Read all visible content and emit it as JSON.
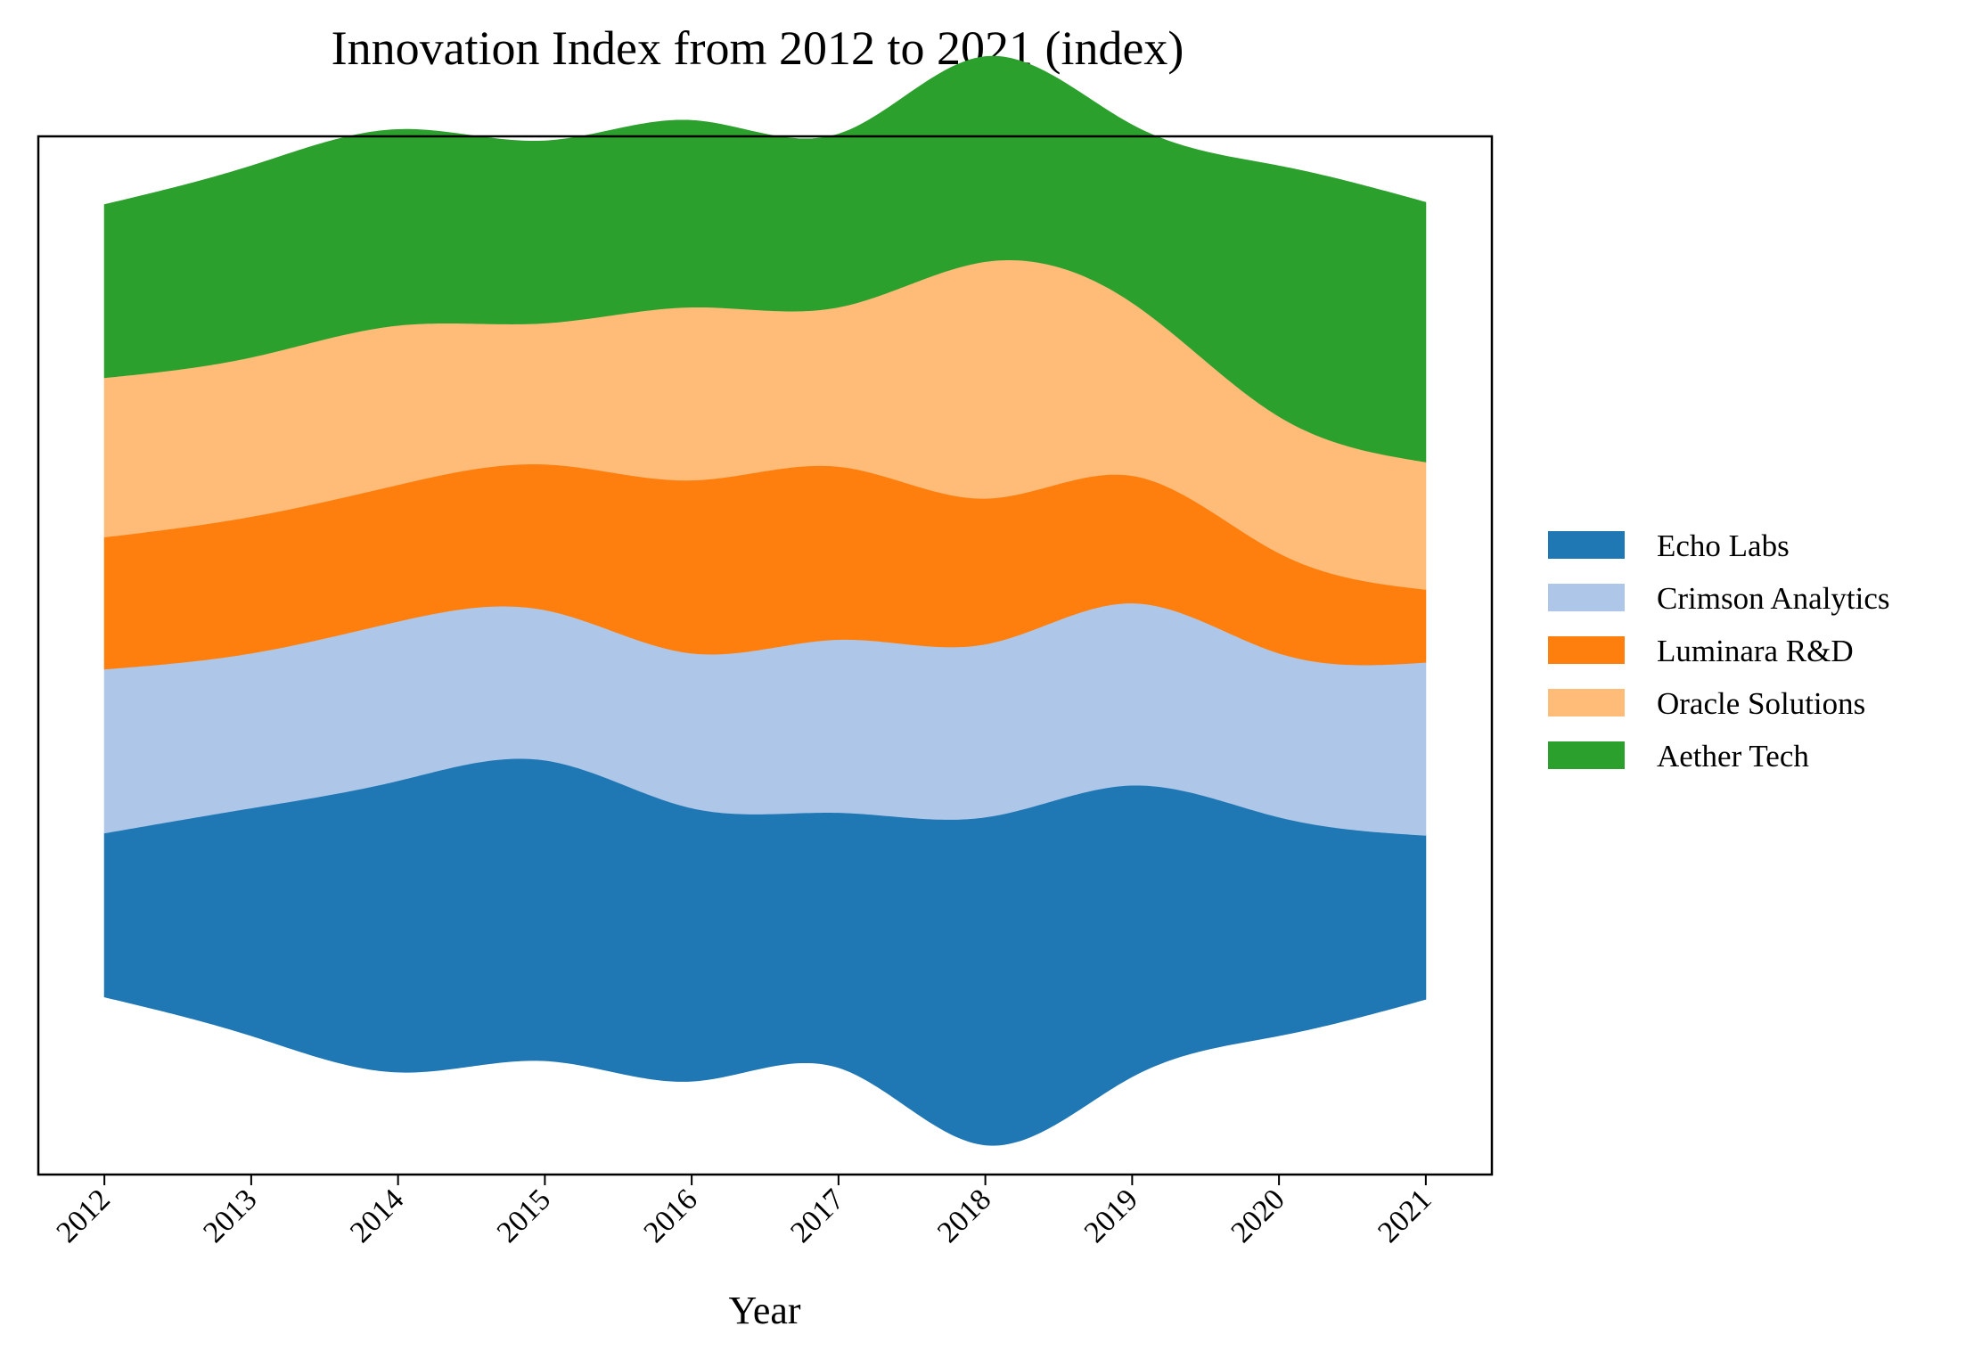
{
  "chart_data": {
    "type": "area",
    "subtype": "streamgraph",
    "title": "Innovation Index from 2012 to 2021 (index)",
    "xlabel": "Year",
    "ylabel": "",
    "x": [
      2012,
      2013,
      2014,
      2015,
      2016,
      2017,
      2018,
      2019,
      2020,
      2021
    ],
    "series": [
      {
        "name": "Echo Labs",
        "color": "#1f77b4",
        "values": [
          18.0,
          25.0,
          32.0,
          33.0,
          30.0,
          28.0,
          36.0,
          32.0,
          24.0,
          18.0
        ]
      },
      {
        "name": "Crimson Analytics",
        "color": "#aec7e8",
        "values": [
          18.0,
          17.0,
          17.5,
          16.5,
          17.0,
          19.0,
          19.0,
          20.0,
          18.0,
          19.0
        ]
      },
      {
        "name": "Luminara R&D",
        "color": "#ff7f0e",
        "values": [
          14.5,
          15.0,
          15.0,
          16.0,
          19.0,
          19.0,
          16.0,
          14.0,
          11.0,
          8.0
        ]
      },
      {
        "name": "Oracle Solutions",
        "color": "#ffbb78",
        "values": [
          17.5,
          17.5,
          17.5,
          15.5,
          19.0,
          17.5,
          26.0,
          19.0,
          15.0,
          14.0
        ]
      },
      {
        "name": "Aether Tech",
        "color": "#2ca02c",
        "values": [
          19.0,
          21.0,
          21.5,
          20.0,
          20.5,
          19.0,
          22.5,
          19.5,
          27.5,
          28.5
        ]
      }
    ],
    "baseline": "symmetric",
    "ylim": [
      -63,
      51
    ],
    "xlim": [
      2011.55,
      2021.45
    ],
    "legend": "right-center",
    "grid": false
  }
}
